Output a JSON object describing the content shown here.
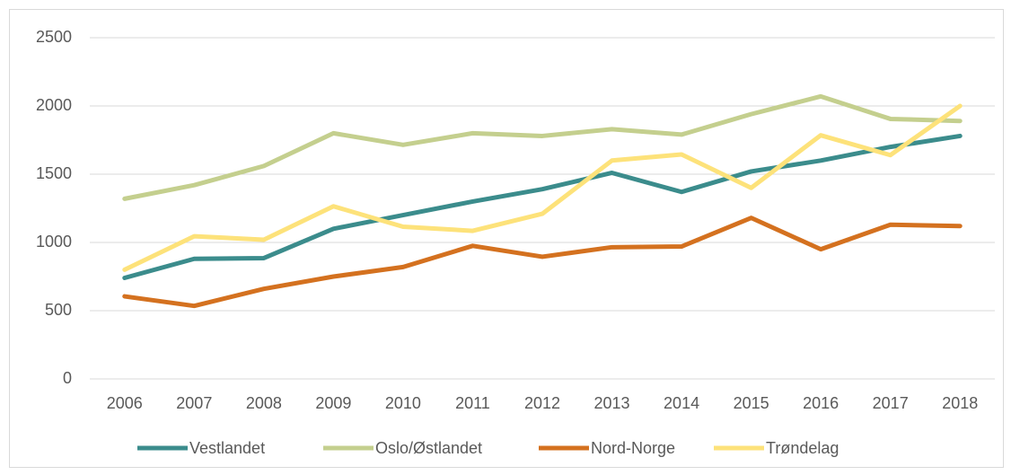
{
  "chart_data": {
    "type": "line",
    "categories": [
      "2006",
      "2007",
      "2008",
      "2009",
      "2010",
      "2011",
      "2012",
      "2013",
      "2014",
      "2015",
      "2016",
      "2017",
      "2018"
    ],
    "series": [
      {
        "name": "Vestlandet",
        "color": "#3b8c8c",
        "values": [
          740,
          880,
          885,
          1100,
          1200,
          1300,
          1390,
          1510,
          1370,
          1520,
          1600,
          1700,
          1780
        ]
      },
      {
        "name": "Oslo/Østlandet",
        "color": "#c4cf8e",
        "values": [
          1320,
          1420,
          1560,
          1800,
          1715,
          1800,
          1780,
          1830,
          1790,
          1940,
          2070,
          1905,
          1890
        ]
      },
      {
        "name": "Nord-Norge",
        "color": "#d4711f",
        "values": [
          605,
          535,
          660,
          750,
          820,
          975,
          895,
          965,
          970,
          1180,
          950,
          1130,
          1120
        ]
      },
      {
        "name": "Trøndelag",
        "color": "#fde27a",
        "values": [
          800,
          1045,
          1020,
          1265,
          1115,
          1085,
          1210,
          1600,
          1645,
          1400,
          1785,
          1640,
          2000
        ]
      }
    ],
    "ylim": [
      0,
      2500
    ],
    "yticks": [
      0,
      500,
      1000,
      1500,
      2000,
      2500
    ],
    "grid": true,
    "legend": "bottom"
  }
}
